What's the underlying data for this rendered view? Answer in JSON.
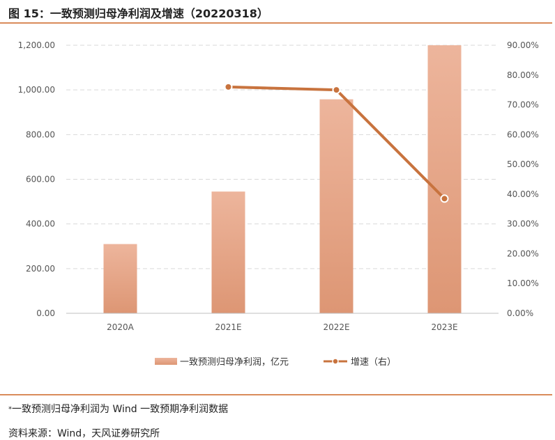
{
  "header": {
    "title": "图 15：一致预测归母净利润及增速（20220318）"
  },
  "footer": {
    "note_marker": "*",
    "note": "一致预测归母净利润为 Wind 一致预期净利润数据",
    "source": "资料来源：Wind，天风证券研究所"
  },
  "colors": {
    "bar": "#e9a989",
    "bar_light": "#efb9a0",
    "line": "#c8733e",
    "rule": "#d98b5a",
    "grid": "#d9d9d9"
  },
  "chart_data": {
    "type": "bar",
    "categories": [
      "2020A",
      "2021E",
      "2022E",
      "2023E"
    ],
    "series": [
      {
        "name": "一致预测归母净利润，亿元",
        "type": "bar",
        "axis": "left",
        "values": [
          310,
          545,
          958,
          1200
        ]
      },
      {
        "name": "增速（右）",
        "type": "line",
        "axis": "right",
        "values": [
          null,
          76.0,
          75.0,
          38.5
        ]
      }
    ],
    "y_left": {
      "min": 0,
      "max": 1200,
      "ticks": [
        "0.00",
        "200.00",
        "400.00",
        "600.00",
        "800.00",
        "1,000.00",
        "1,200.00"
      ]
    },
    "y_right": {
      "min": 0,
      "max": 90,
      "ticks": [
        "0.00%",
        "10.00%",
        "20.00%",
        "30.00%",
        "40.00%",
        "50.00%",
        "60.00%",
        "70.00%",
        "80.00%",
        "90.00%"
      ]
    },
    "grid": true,
    "legend": "bottom"
  }
}
